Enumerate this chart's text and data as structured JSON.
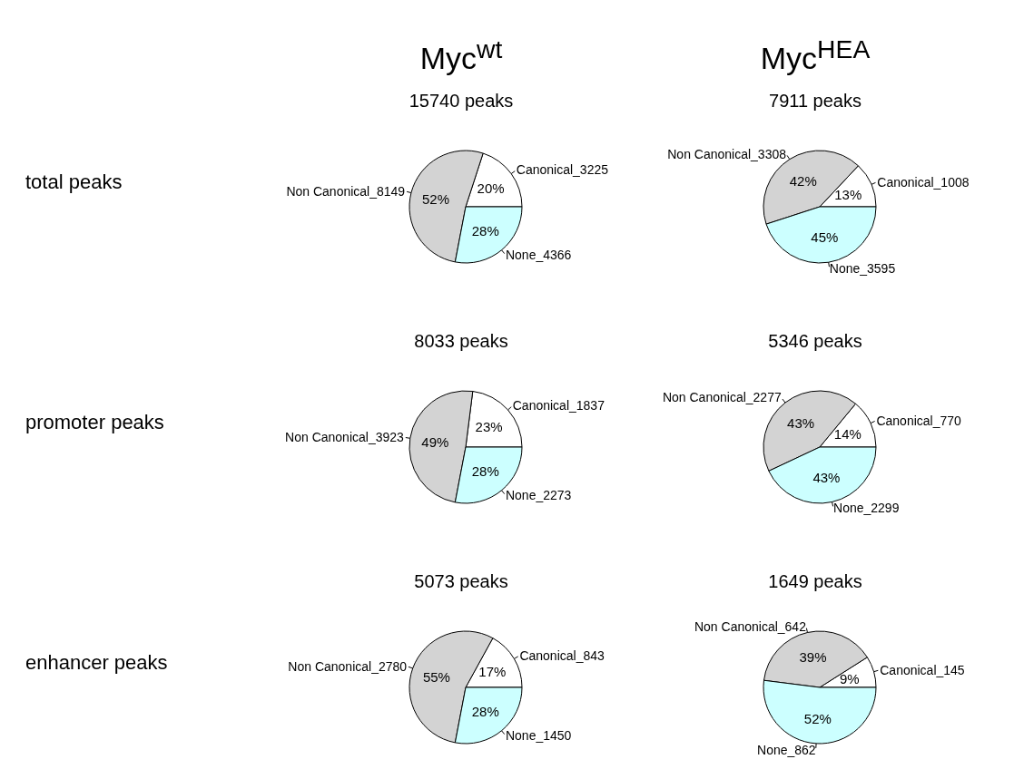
{
  "chart_data": [
    {
      "type": "pie",
      "subtitle": "Myc$^{wt}$",
      "ylabel": "total peaks",
      "title": "15740 peaks",
      "categories": [
        "Canonical_3225",
        "Non Canonical_8149",
        "None_4366"
      ],
      "values": [
        20,
        52,
        28
      ],
      "colors": [
        "#ffffff",
        "#d3d3d3",
        "#ccffff"
      ],
      "value_labels": [
        "20%",
        "52%",
        "28%"
      ]
    },
    {
      "type": "pie",
      "subtitle": "Myc$^{HEA}$",
      "title": "7911 peaks",
      "categories": [
        "Canonical_1008",
        "Non Canonical_3308",
        "None_3595"
      ],
      "values": [
        13,
        42,
        45
      ],
      "colors": [
        "#ffffff",
        "#d3d3d3",
        "#ccffff"
      ],
      "value_labels": [
        "13%",
        "42%",
        "45%"
      ]
    },
    {
      "type": "pie",
      "ylabel": "promoter peaks",
      "title": "8033 peaks",
      "categories": [
        "Canonical_1837",
        "Non Canonical_3923",
        "None_2273"
      ],
      "values": [
        23,
        49,
        28
      ],
      "colors": [
        "#ffffff",
        "#d3d3d3",
        "#ccffff"
      ],
      "value_labels": [
        "23%",
        "49%",
        "28%"
      ]
    },
    {
      "type": "pie",
      "title": "5346 peaks",
      "categories": [
        "Canonical_770",
        "Non Canonical_2277",
        "None_2299"
      ],
      "values": [
        14,
        43,
        43
      ],
      "colors": [
        "#ffffff",
        "#d3d3d3",
        "#ccffff"
      ],
      "value_labels": [
        "14%",
        "43%",
        "43%"
      ]
    },
    {
      "type": "pie",
      "ylabel": "enhancer peaks",
      "title": "5073 peaks",
      "categories": [
        "Canonical_843",
        "Non Canonical_2780",
        "None_1450"
      ],
      "values": [
        17,
        55,
        28
      ],
      "colors": [
        "#ffffff",
        "#d3d3d3",
        "#ccffff"
      ],
      "value_labels": [
        "17%",
        "55%",
        "28%"
      ]
    },
    {
      "type": "pie",
      "title": "1649 peaks",
      "categories": [
        "Canonical_145",
        "Non Canonical_642",
        "None_862"
      ],
      "values": [
        9,
        39,
        52
      ],
      "colors": [
        "#ffffff",
        "#d3d3d3",
        "#ccffff"
      ],
      "value_labels": [
        "9%",
        "39%",
        "52%"
      ]
    }
  ]
}
